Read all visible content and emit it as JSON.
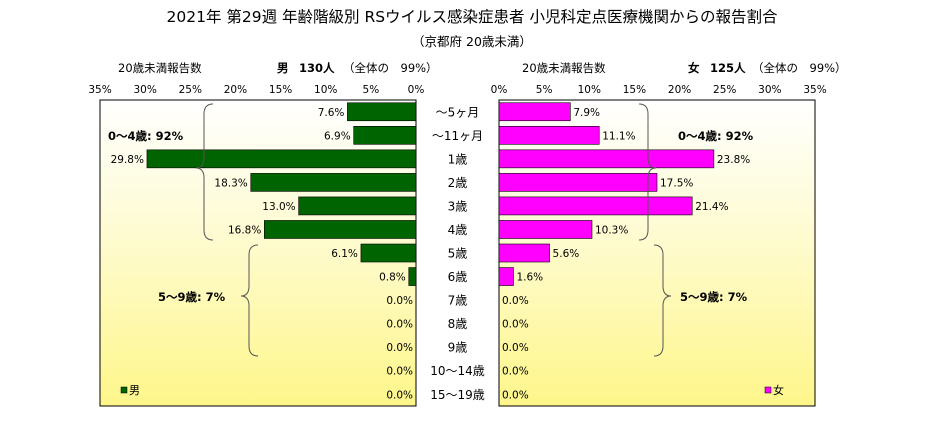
{
  "title": "2021年 第29週 年齢階級別 RSウイルス感染症患者 小児科定点医療機関からの報告割合",
  "subtitle": "（京都府 20歳未満）",
  "colors": {
    "male": "#006400",
    "female": "#ff00ff",
    "bg_light": "#ffffff",
    "bg_yellow": "#fefaa8"
  },
  "male_panel": {
    "count_label": "20歳未満報告数",
    "sex_label": "男",
    "count_value": "130人",
    "ratio_label": "（全体の　99%）",
    "legend": "男",
    "group_labels": [
      "0～4歳: 92%",
      "5～9歳: 7%"
    ]
  },
  "female_panel": {
    "count_label": "20歳未満報告数",
    "sex_label": "女",
    "count_value": "125人",
    "ratio_label": "（全体の　99%）",
    "legend": "女",
    "group_labels": [
      "0～4歳: 92%",
      "5～9歳: 7%"
    ]
  },
  "chart_data": {
    "type": "bar",
    "orientation": "horizontal",
    "categories": [
      "～5ヶ月",
      "～11ヶ月",
      "1歳",
      "2歳",
      "3歳",
      "4歳",
      "5歳",
      "6歳",
      "7歳",
      "8歳",
      "9歳",
      "10～14歳",
      "15～19歳"
    ],
    "series": [
      {
        "name": "男",
        "values": [
          7.6,
          6.9,
          29.8,
          18.3,
          13.0,
          16.8,
          6.1,
          0.8,
          0.0,
          0.0,
          0.0,
          0.0,
          0.0
        ],
        "labels": [
          "7.6%",
          "6.9%",
          "29.8%",
          "18.3%",
          "13.0%",
          "16.8%",
          "6.1%",
          "0.8%",
          "0.0%",
          "0.0%",
          "0.0%",
          "0.0%",
          "0.0%"
        ]
      },
      {
        "name": "女",
        "values": [
          7.9,
          11.1,
          23.8,
          17.5,
          21.4,
          10.3,
          5.6,
          1.6,
          0.0,
          0.0,
          0.0,
          0.0,
          0.0
        ],
        "labels": [
          "7.9%",
          "11.1%",
          "23.8%",
          "17.5%",
          "21.4%",
          "10.3%",
          "5.6%",
          "1.6%",
          "0.0%",
          "0.0%",
          "0.0%",
          "0.0%",
          "0.0%"
        ]
      }
    ],
    "xlim": [
      0,
      35
    ],
    "xticks": [
      "0%",
      "5%",
      "10%",
      "15%",
      "20%",
      "25%",
      "30%",
      "35%"
    ],
    "male_axis": "reversed",
    "grid": false
  }
}
